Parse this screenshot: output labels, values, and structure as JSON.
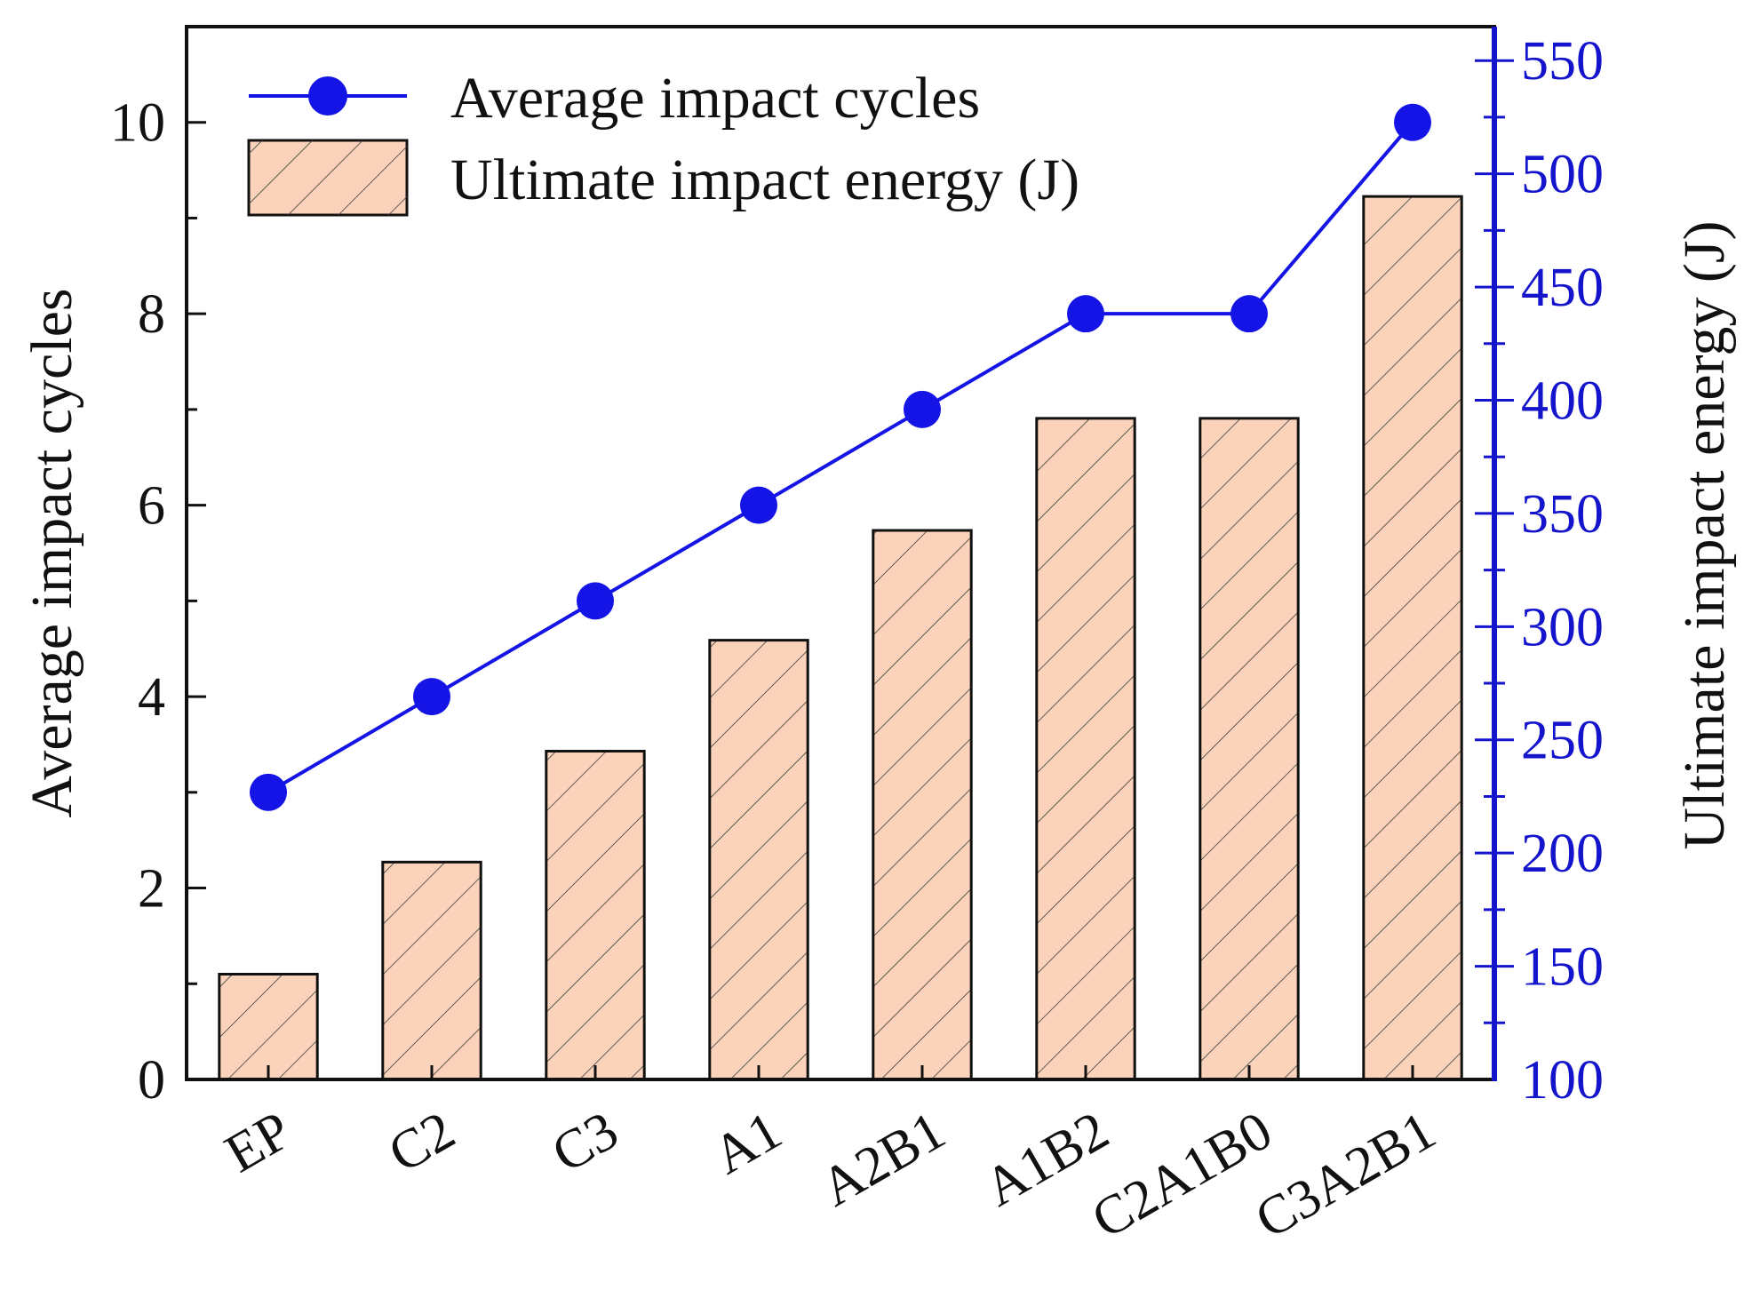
{
  "chart_data": {
    "type": "bar+line",
    "categories": [
      "EP",
      "C2",
      "C3",
      "A1",
      "A2B1",
      "A1B2",
      "C2A1B0",
      "C3A2B1"
    ],
    "series": [
      {
        "name": "Ultimate impact energy (J)",
        "kind": "bar",
        "axis": "right",
        "values": [
          146.5,
          196,
          245,
          294,
          342.5,
          392,
          392,
          490
        ]
      },
      {
        "name": "Average impact cycles",
        "kind": "line",
        "axis": "left",
        "values": [
          3,
          4,
          5,
          6,
          7,
          8,
          8,
          10
        ]
      }
    ],
    "left_axis": {
      "label": "Average impact cycles",
      "range": [
        0,
        11
      ],
      "ticks": [
        "0",
        "2",
        "4",
        "6",
        "8",
        "10"
      ]
    },
    "right_axis": {
      "label": "Ultimate impact energy (J)",
      "range": [
        100,
        565
      ],
      "ticks": [
        "100",
        "150",
        "200",
        "250",
        "300",
        "350",
        "400",
        "450",
        "500",
        "550"
      ]
    },
    "legend": {
      "position": "top-left",
      "entries": [
        "Average impact cycles",
        "Ultimate impact energy (J)"
      ]
    },
    "colors": {
      "bar_fill": "#fbd3bb",
      "bar_stroke": "#111111",
      "hatch": "#3a3a3a",
      "line": "#1414e6",
      "right_axis": "#1414cc",
      "left_axis": "#111111"
    }
  }
}
